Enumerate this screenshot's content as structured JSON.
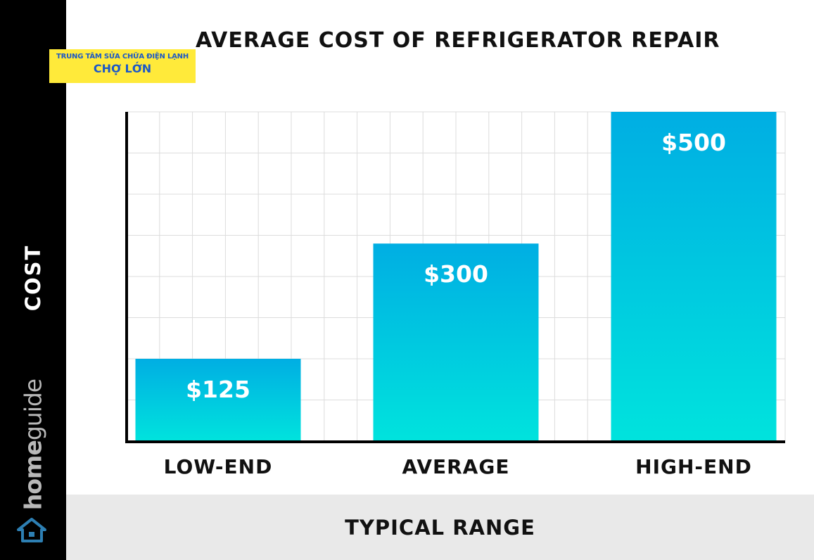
{
  "watermark": {
    "line1": "TRUNG TÂM SỬA CHỮA ĐIỆN LẠNH",
    "line2": "CHỢ LỚN"
  },
  "brand": {
    "part1": "home",
    "part2": "guide"
  },
  "colors": {
    "bar_top": "#00aee3",
    "bar_bottom": "#00e3dd",
    "sidebar": "#000000",
    "footer": "#e9e9e9",
    "watermark_bg": "#ffea3a",
    "watermark_text": "#1b58c8"
  },
  "chart_data": {
    "type": "bar",
    "title": "AVERAGE COST OF REFRIGERATOR REPAIR",
    "xlabel": "TYPICAL RANGE",
    "ylabel": "COST",
    "categories": [
      "LOW-END",
      "AVERAGE",
      "HIGH-END"
    ],
    "values": [
      125,
      300,
      500
    ],
    "data_labels": [
      "$125",
      "$300",
      "$500"
    ],
    "ylim": [
      0,
      500
    ],
    "grid": true,
    "legend": "none"
  }
}
